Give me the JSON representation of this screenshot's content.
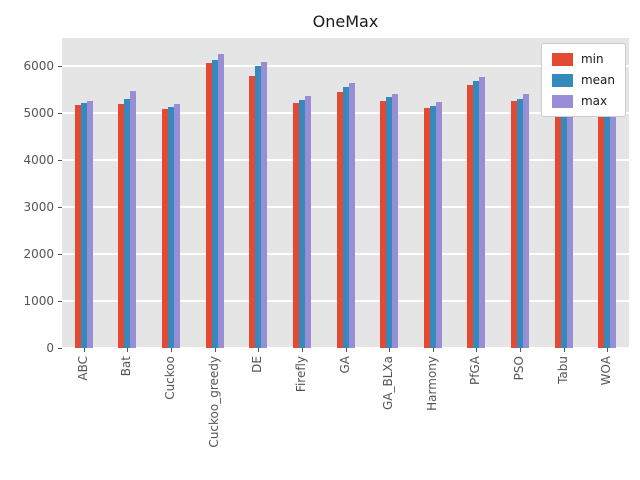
{
  "chart_data": {
    "type": "bar",
    "title": "OneMax",
    "categories": [
      "ABC",
      "Bat",
      "Cuckoo",
      "Cuckoo_greedy",
      "DE",
      "Firefly",
      "GA",
      "GA_BLXa",
      "Harmony",
      "PfGA",
      "PSO",
      "Tabu",
      "WOA"
    ],
    "series": [
      {
        "name": "min",
        "color": "#E24A33",
        "values": [
          5170,
          5200,
          5080,
          6060,
          5790,
          5210,
          5460,
          5260,
          5110,
          5590,
          5260,
          5040,
          5010
        ]
      },
      {
        "name": "mean",
        "color": "#348ABD",
        "values": [
          5210,
          5310,
          5130,
          6140,
          6010,
          5290,
          5560,
          5340,
          5160,
          5680,
          5310,
          5090,
          5100
        ]
      },
      {
        "name": "max",
        "color": "#988ED5",
        "values": [
          5250,
          5480,
          5190,
          6250,
          6080,
          5360,
          5650,
          5410,
          5230,
          5780,
          5410,
          5160,
          5240
        ]
      }
    ],
    "ylim": [
      0,
      6600
    ],
    "yticks": [
      0,
      1000,
      2000,
      3000,
      4000,
      5000,
      6000
    ],
    "xlabel": "",
    "ylabel": "",
    "grid": true,
    "legend_position": "upper right",
    "plot_background": "#E5E5E5",
    "grid_color": "#FFFFFF",
    "tick_color": "#555555"
  }
}
